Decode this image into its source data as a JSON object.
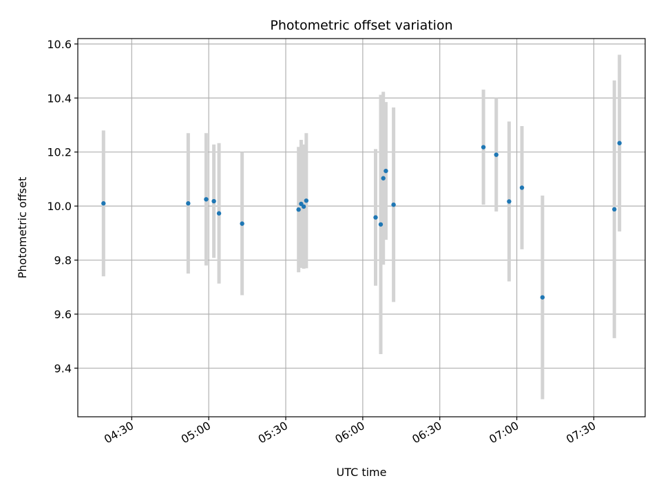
{
  "chart_data": {
    "type": "scatter",
    "title": "Photometric offset variation",
    "xlabel": "UTC time",
    "ylabel": "Photometric offset",
    "xlim": [
      "04:09",
      "07:50"
    ],
    "ylim": [
      9.22,
      10.62
    ],
    "xticks": [
      "04:30",
      "05:00",
      "05:30",
      "06:00",
      "06:30",
      "07:00",
      "07:30"
    ],
    "yticks": [
      9.4,
      9.6,
      9.8,
      10.0,
      10.2,
      10.4,
      10.6
    ],
    "grid": true,
    "point_color": "#1f77b4",
    "errorbar_color": "#d3d3d3",
    "points": [
      {
        "time": "04:19",
        "value": 10.01,
        "error": 0.27
      },
      {
        "time": "04:52",
        "value": 10.01,
        "error": 0.26
      },
      {
        "time": "04:59",
        "value": 10.025,
        "error": 0.245
      },
      {
        "time": "05:02",
        "value": 10.018,
        "error": 0.21
      },
      {
        "time": "05:04",
        "value": 9.973,
        "error": 0.26
      },
      {
        "time": "05:13",
        "value": 9.935,
        "error": 0.265
      },
      {
        "time": "05:35",
        "value": 9.987,
        "error": 0.232
      },
      {
        "time": "05:36",
        "value": 10.008,
        "error": 0.237
      },
      {
        "time": "05:37",
        "value": 9.998,
        "error": 0.23
      },
      {
        "time": "05:38",
        "value": 10.02,
        "error": 0.25
      },
      {
        "time": "06:05",
        "value": 9.958,
        "error": 0.253
      },
      {
        "time": "06:07",
        "value": 9.932,
        "error": 0.48
      },
      {
        "time": "06:08",
        "value": 10.103,
        "error": 0.32
      },
      {
        "time": "06:09",
        "value": 10.13,
        "error": 0.255
      },
      {
        "time": "06:12",
        "value": 10.005,
        "error": 0.36
      },
      {
        "time": "06:47",
        "value": 10.218,
        "error": 0.213
      },
      {
        "time": "06:52",
        "value": 10.19,
        "error": 0.21
      },
      {
        "time": "06:57",
        "value": 10.017,
        "error": 0.296
      },
      {
        "time": "07:02",
        "value": 10.068,
        "error": 0.228
      },
      {
        "time": "07:10",
        "value": 9.662,
        "error": 0.377
      },
      {
        "time": "07:38",
        "value": 9.988,
        "error": 0.477
      },
      {
        "time": "07:40",
        "value": 10.233,
        "error": 0.327
      }
    ]
  }
}
